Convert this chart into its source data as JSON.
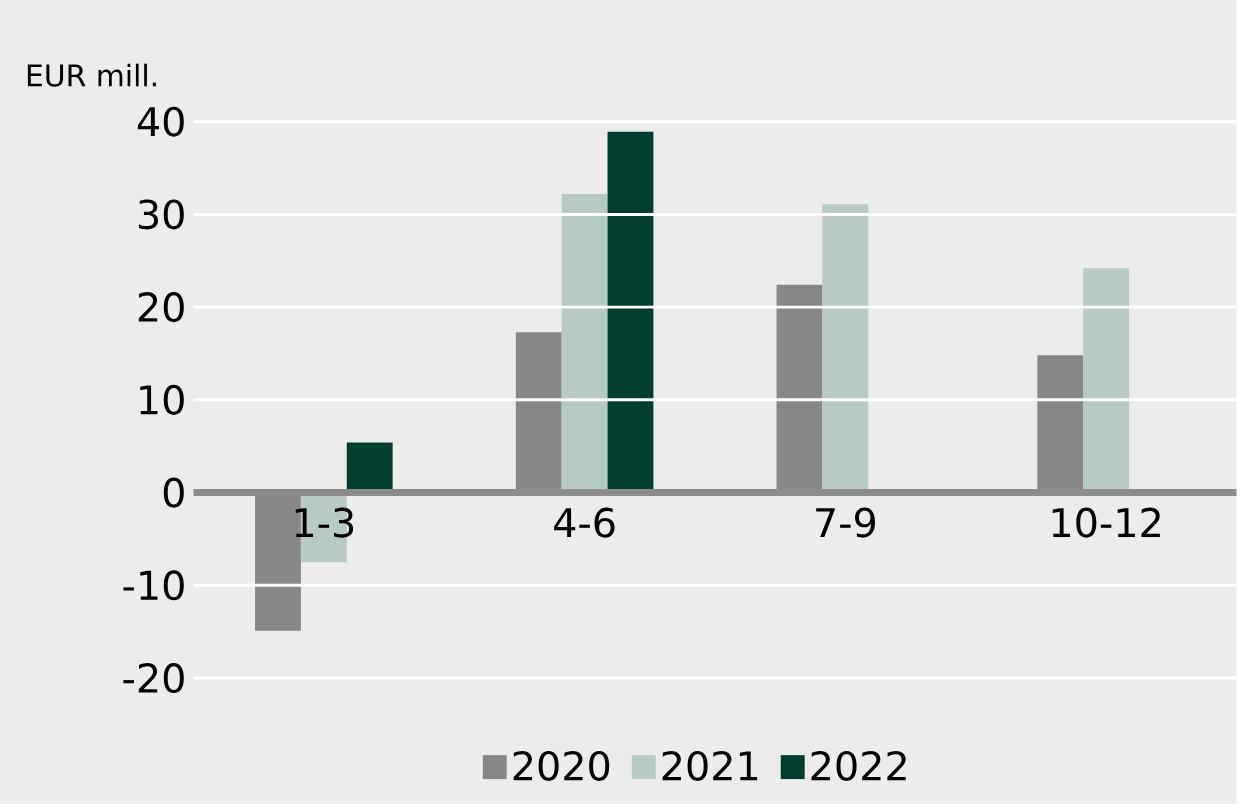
{
  "chart_data": {
    "type": "bar",
    "ylabel": "EUR mill.",
    "categories": [
      "1-3",
      "4-6",
      "7-9",
      "10-12"
    ],
    "series": [
      {
        "name": "2020",
        "color": "#878787",
        "values": [
          -14.9,
          17.3,
          22.4,
          14.8
        ]
      },
      {
        "name": "2021",
        "color": "#b7cbc2",
        "values": [
          -7.5,
          32.2,
          31.1,
          24.2
        ]
      },
      {
        "name": "2022",
        "color": "#003f2f",
        "values": [
          5.4,
          38.9,
          null,
          null
        ]
      }
    ],
    "ylim": [
      -20,
      40
    ],
    "yticks": [
      -20,
      -10,
      0,
      10,
      20,
      30,
      40
    ],
    "grid": "y",
    "legend": "bottom"
  }
}
